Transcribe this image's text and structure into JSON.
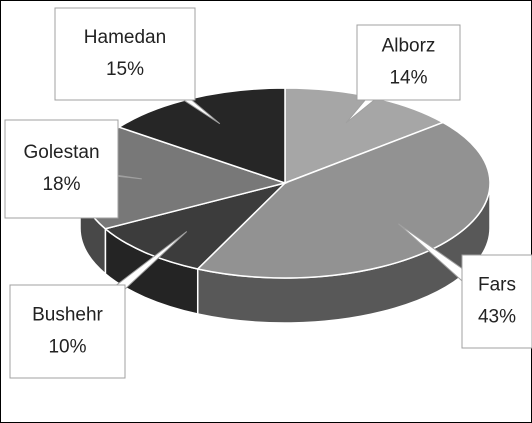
{
  "chart_data": {
    "type": "pie",
    "categories": [
      "Alborz",
      "Fars",
      "Bushehr",
      "Golestan",
      "Hamedan"
    ],
    "values": [
      14,
      43,
      10,
      18,
      15
    ],
    "value_labels": [
      "14%",
      "43%",
      "10%",
      "18%",
      "15%"
    ],
    "colors": [
      "#a6a6a6",
      "#929292",
      "#3c3c3c",
      "#787878",
      "#262626"
    ]
  }
}
